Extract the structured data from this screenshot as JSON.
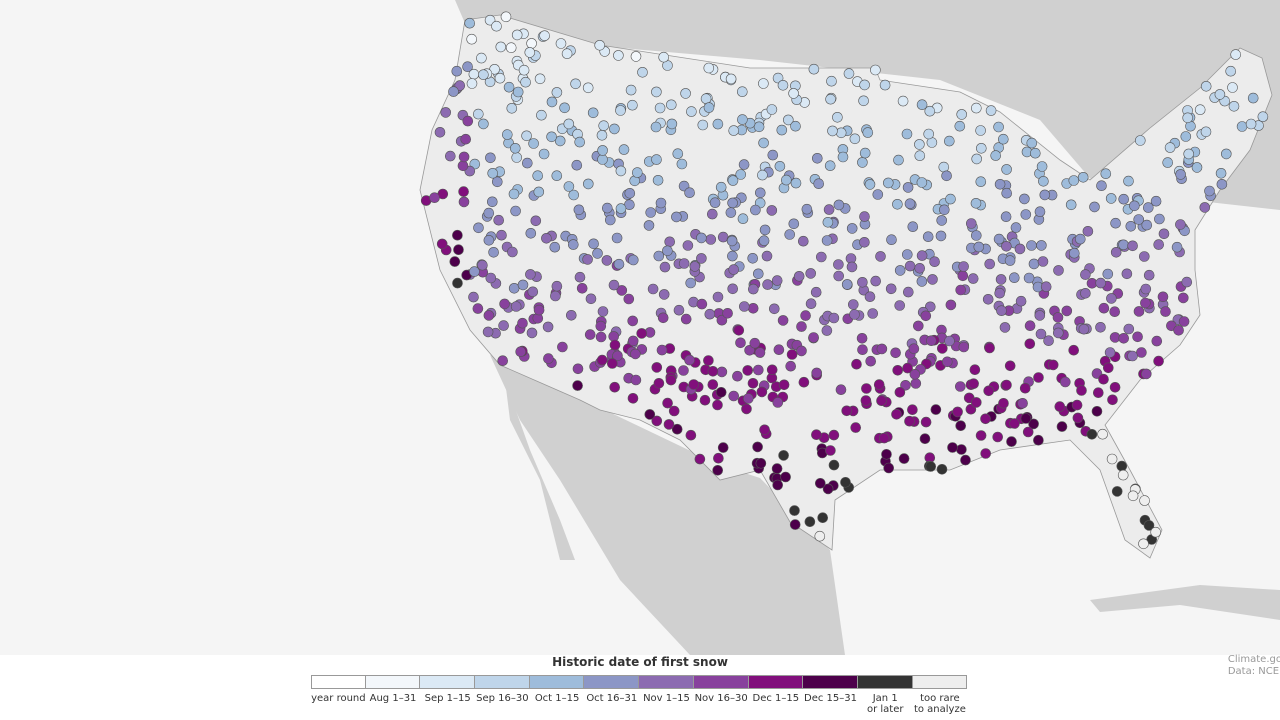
{
  "legend": {
    "title": "Historic date of first snow",
    "items": [
      {
        "label": "year round",
        "color": "#ffffff"
      },
      {
        "label": "Aug 1–31",
        "color": "#f3f7fb"
      },
      {
        "label": "Sep 1–15",
        "color": "#dbe9f5"
      },
      {
        "label": "Sep 16–30",
        "color": "#bfd5ea"
      },
      {
        "label": "Oct 1–15",
        "color": "#9ebcdb"
      },
      {
        "label": "Oct 16–31",
        "color": "#8c96c6"
      },
      {
        "label": "Nov 1–15",
        "color": "#8c6bb1"
      },
      {
        "label": "Nov 16–30",
        "color": "#88419d"
      },
      {
        "label": "Dec 1–15",
        "color": "#810f7c"
      },
      {
        "label": "Dec 15–31",
        "color": "#4d004b"
      },
      {
        "label": "Jan 1\nor later",
        "color": "#333333"
      },
      {
        "label": "too rare\nto analyze",
        "color": "#eeeeee"
      }
    ]
  },
  "credits": [
    "Climate.go",
    "Data: NCEI"
  ]
}
